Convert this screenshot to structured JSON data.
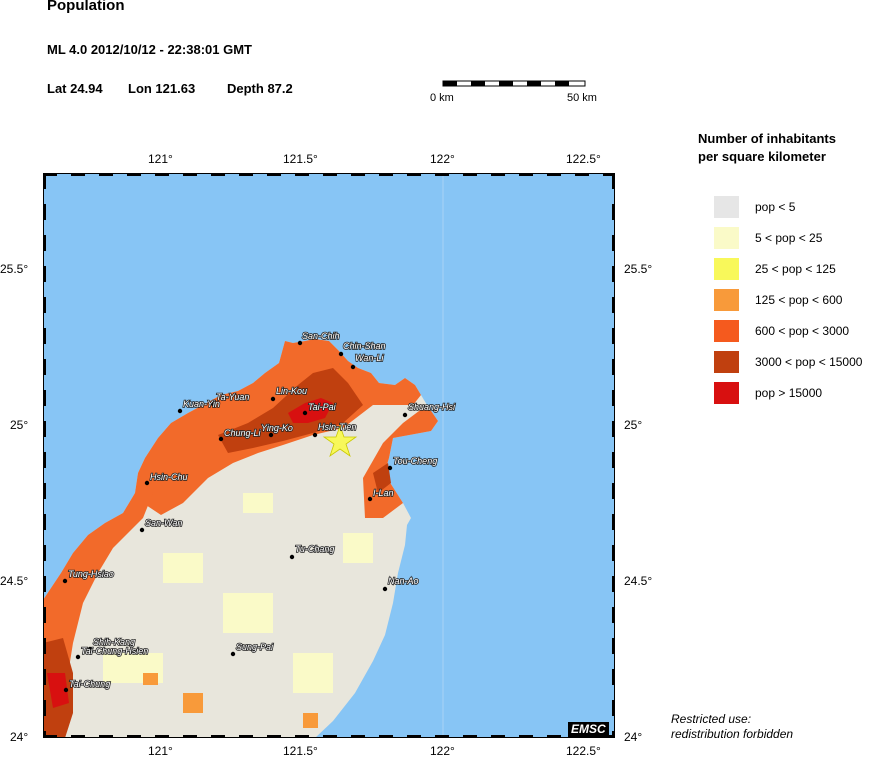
{
  "header": {
    "title": "Population",
    "event_line": "ML 4.0  2012/10/12 - 22:38:01 GMT",
    "lat": "Lat 24.94",
    "lon": "Lon 121.63",
    "depth": "Depth  87.2"
  },
  "scale_bar": {
    "start_label": "0 km",
    "end_label": "50 km"
  },
  "map": {
    "lon_ticks_top": [
      "121°",
      "121.5°",
      "122°",
      "122.5°"
    ],
    "lon_ticks_bottom": [
      "121°",
      "121.5°",
      "122°",
      "122.5°"
    ],
    "lat_ticks_left": [
      "25.5°",
      "25°",
      "24.5°",
      "24°"
    ],
    "lat_ticks_right": [
      "25.5°",
      "25°",
      "24.5°",
      "24°"
    ],
    "sea_color": "#87c5f5",
    "epicenter_marker": "star-icon",
    "cities": [
      "San-Chih",
      "Chin-Shan",
      "Wan-Li",
      "Ta-Yuan",
      "Lin-Kou",
      "Kuan-Yin",
      "Tai-Pai",
      "Shuang-Hsi",
      "Chung-Li",
      "Ying-Ko",
      "Hsin-Tien",
      "Hsin-Chu",
      "Tou-Cheng",
      "I-Lan",
      "San-Wan",
      "Tu-Chang",
      "Tung-Hsiao",
      "Nan-Ao",
      "Shih-Kang",
      "Tai-Chung-Hsien",
      "Sung-Pai",
      "Tai-Chung"
    ]
  },
  "legend": {
    "title_line1": "Number of inhabitants",
    "title_line2": "per square kilometer",
    "items": [
      {
        "label": "pop < 5",
        "color": "#e6e6e6"
      },
      {
        "label": "5 < pop < 25",
        "color": "#fafac8"
      },
      {
        "label": "25 < pop < 125",
        "color": "#f8f85a"
      },
      {
        "label": "125 < pop < 600",
        "color": "#f89a3a"
      },
      {
        "label": "600 < pop < 3000",
        "color": "#f55a1e"
      },
      {
        "label": "3000 < pop < 15000",
        "color": "#c0400f"
      },
      {
        "label": "pop > 15000",
        "color": "#d81010"
      }
    ]
  },
  "badge": "EMSC",
  "restricted_line1": "Restricted use:",
  "restricted_line2": "redistribution forbidden"
}
